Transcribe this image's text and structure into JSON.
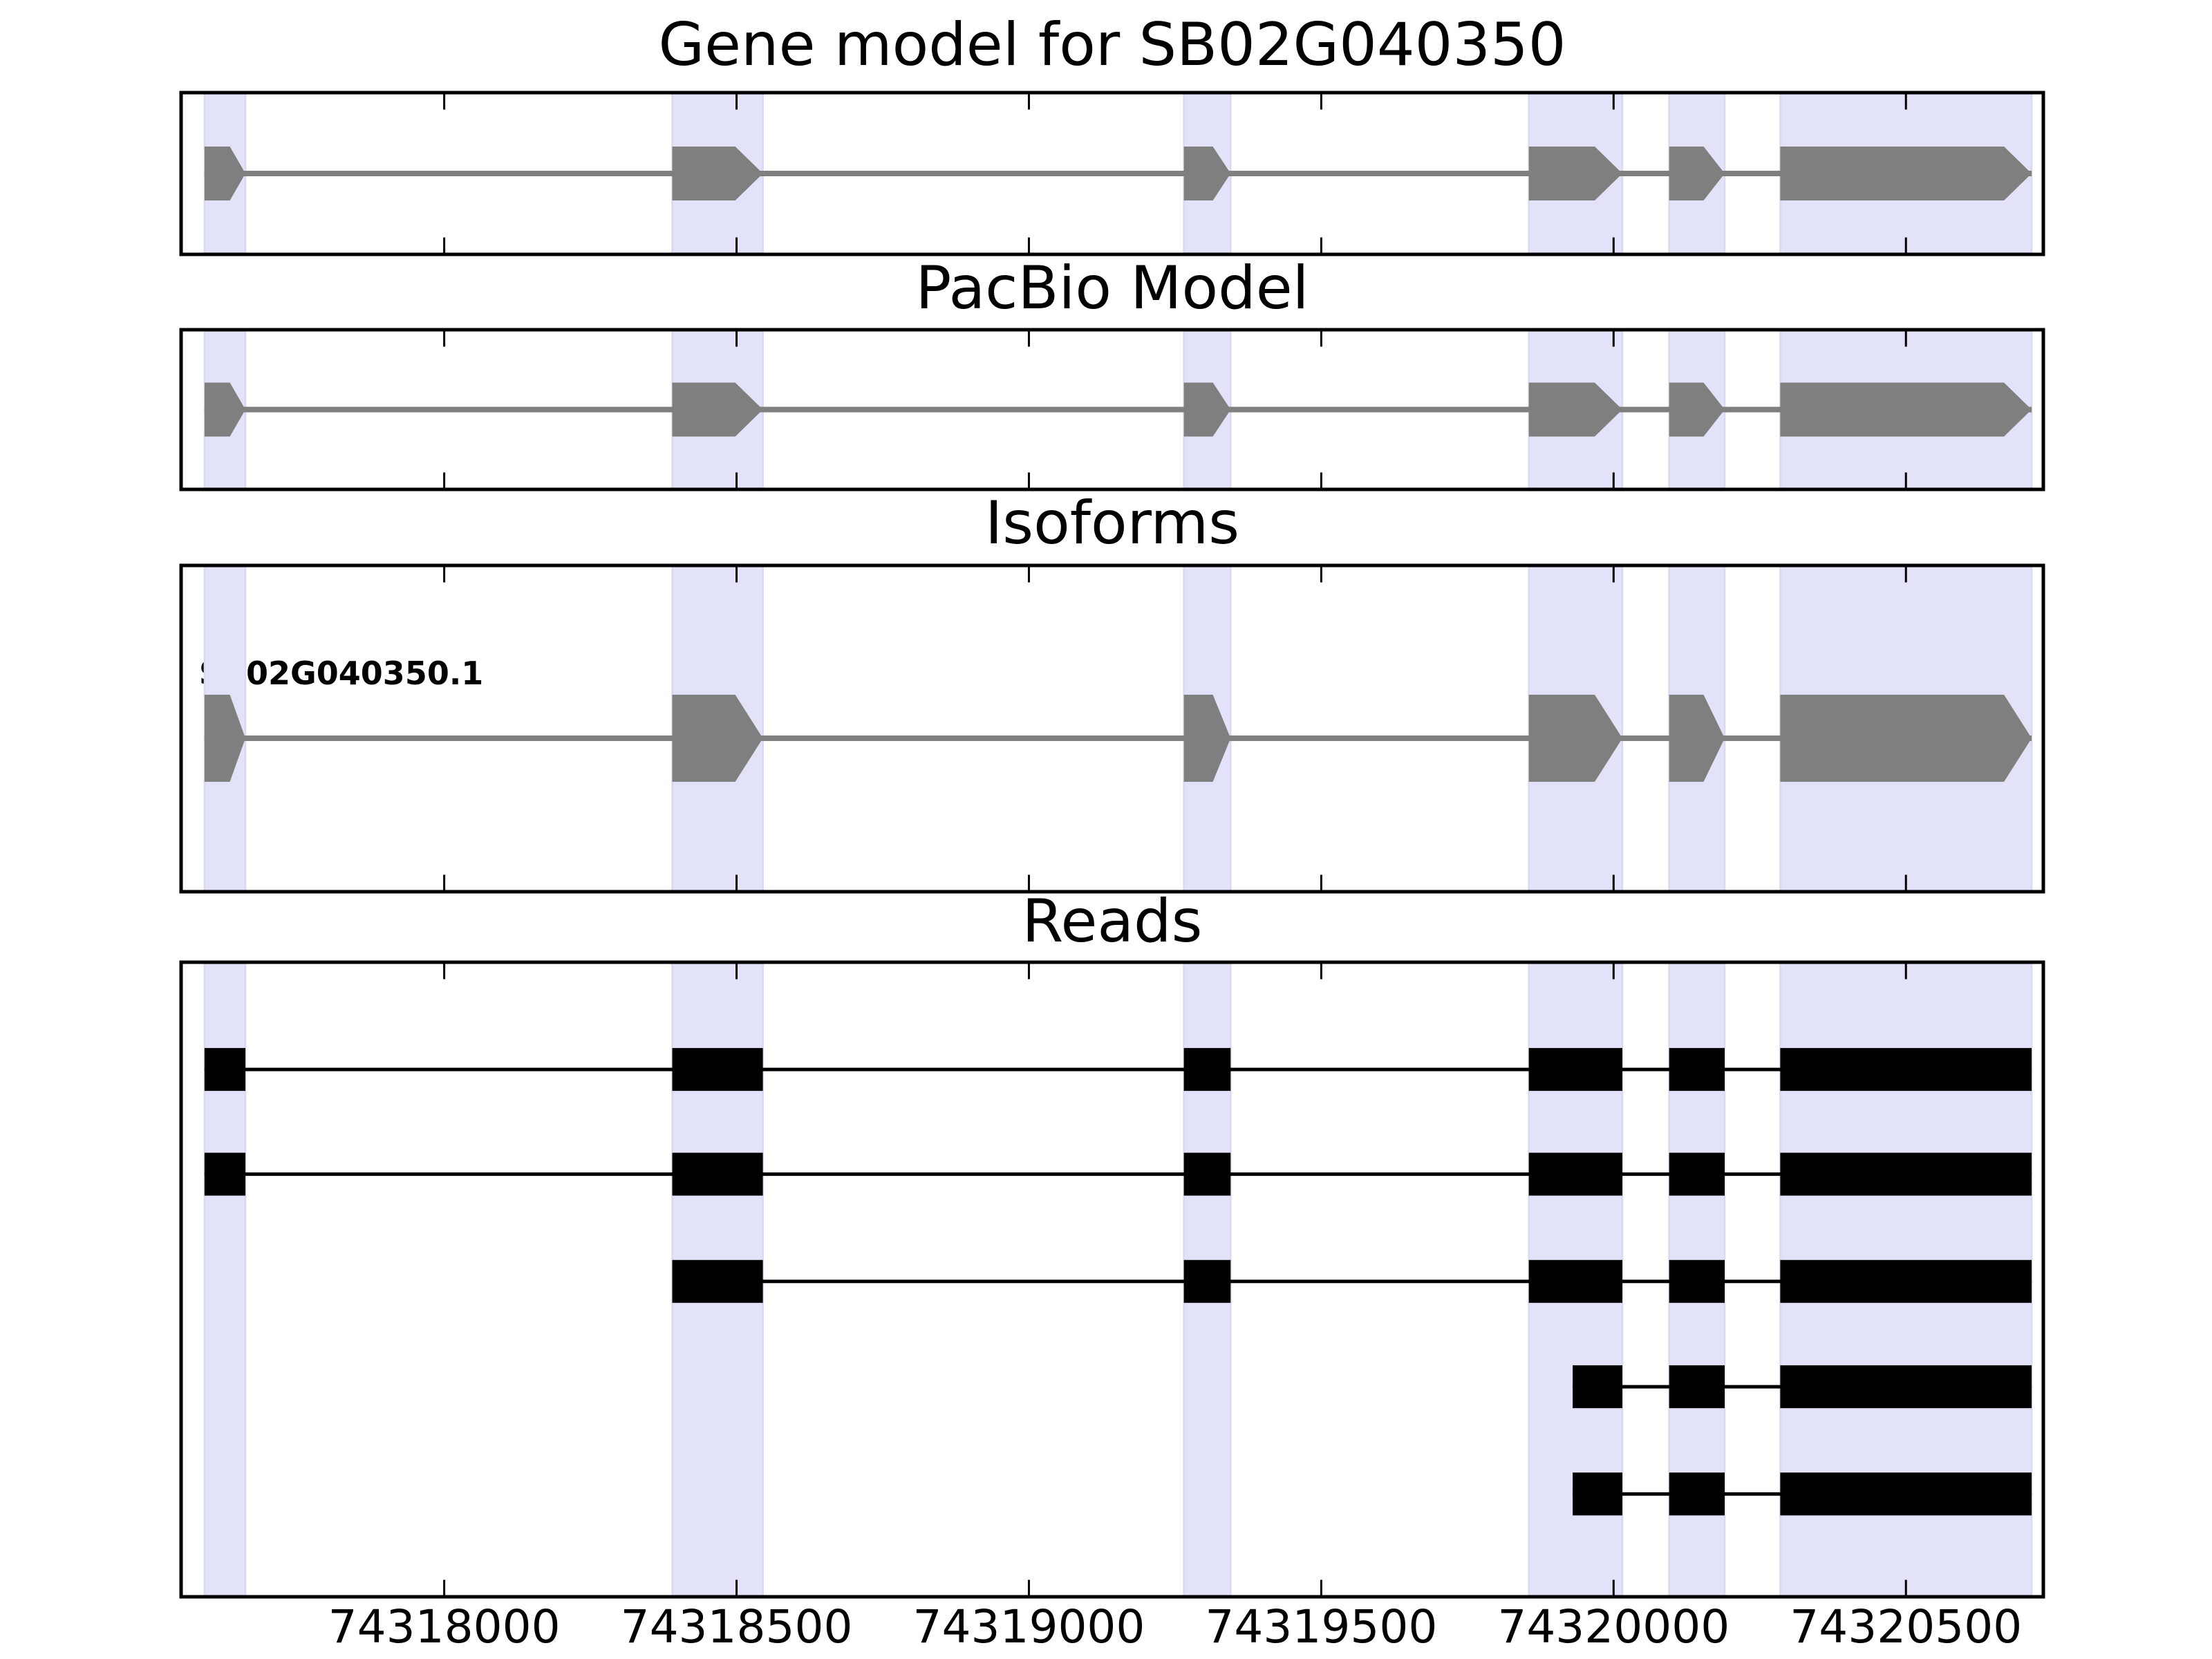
{
  "chart_data": {
    "type": "gene_model_tracks",
    "title": "Gene model for SB02G040350",
    "gene_id": "SB02G040350",
    "strand": "+",
    "x_axis": {
      "domain": [
        74317550,
        74320735
      ],
      "tick_values": [
        74318000,
        74318500,
        74319000,
        74319500,
        74320000,
        74320500
      ],
      "tick_labels": [
        "74318000",
        "74318500",
        "74319000",
        "74319500",
        "74320000",
        "74320500"
      ],
      "grid": false
    },
    "exons": [
      [
        74317590,
        74317660
      ],
      [
        74318390,
        74318545
      ],
      [
        74319265,
        74319345
      ],
      [
        74319855,
        74320015
      ],
      [
        74320095,
        74320190
      ],
      [
        74320285,
        74320715
      ]
    ],
    "highlight_bands": [
      [
        74317590,
        74317660
      ],
      [
        74318390,
        74318545
      ],
      [
        74319265,
        74319345
      ],
      [
        74319855,
        74320015
      ],
      [
        74320095,
        74320190
      ],
      [
        74320285,
        74320715
      ]
    ],
    "panels": [
      {
        "id": "gene-model",
        "title": "Gene model for SB02G040350",
        "kind": "model"
      },
      {
        "id": "pacbio-model",
        "title": "PacBio Model",
        "kind": "model"
      },
      {
        "id": "isoforms",
        "title": "Isoforms",
        "kind": "model",
        "label": "SB02G040350.1"
      },
      {
        "id": "reads",
        "title": "Reads",
        "kind": "reads",
        "reads": [
          {
            "blocks": [
              [
                74317590,
                74317660
              ],
              [
                74318390,
                74318545
              ],
              [
                74319265,
                74319345
              ],
              [
                74319855,
                74320015
              ],
              [
                74320095,
                74320190
              ],
              [
                74320285,
                74320715
              ]
            ]
          },
          {
            "blocks": [
              [
                74317590,
                74317660
              ],
              [
                74318390,
                74318545
              ],
              [
                74319265,
                74319345
              ],
              [
                74319855,
                74320015
              ],
              [
                74320095,
                74320190
              ],
              [
                74320285,
                74320715
              ]
            ]
          },
          {
            "blocks": [
              [
                74318390,
                74318545
              ],
              [
                74319265,
                74319345
              ],
              [
                74319855,
                74320015
              ],
              [
                74320095,
                74320190
              ],
              [
                74320285,
                74320715
              ]
            ]
          },
          {
            "blocks": [
              [
                74319930,
                74320015
              ],
              [
                74320095,
                74320190
              ],
              [
                74320285,
                74320715
              ]
            ]
          },
          {
            "blocks": [
              [
                74319930,
                74320015
              ],
              [
                74320095,
                74320190
              ],
              [
                74320285,
                74320715
              ]
            ]
          }
        ]
      }
    ],
    "colors": {
      "exon_fill": "#7f7f7f",
      "intron_line_model": "#7f7f7f",
      "read_fill": "#000000",
      "band_fill": "#e2e2f8",
      "band_edge": "#d9d9ef",
      "panel_border": "#000000",
      "tick": "#000000",
      "text": "#000000",
      "background": "#ffffff"
    }
  }
}
